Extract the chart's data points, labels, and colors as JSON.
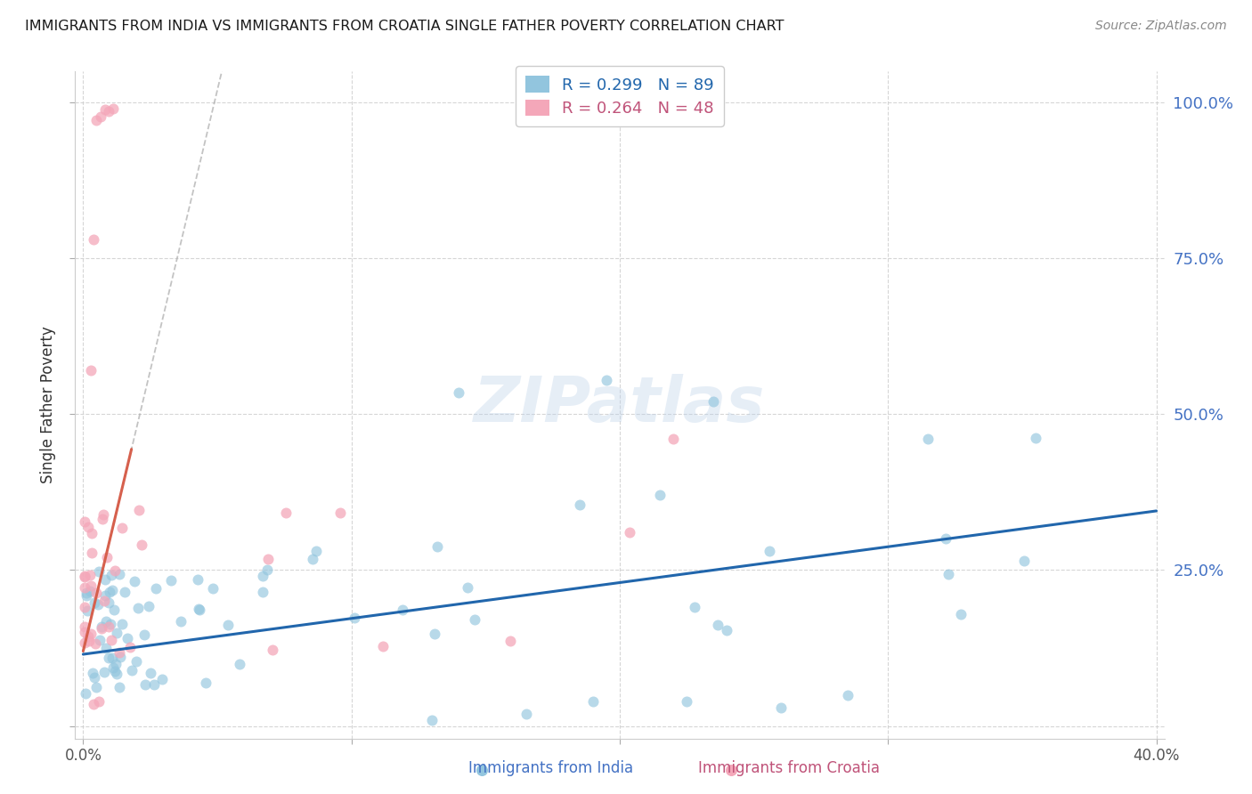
{
  "title": "IMMIGRANTS FROM INDIA VS IMMIGRANTS FROM CROATIA SINGLE FATHER POVERTY CORRELATION CHART",
  "source": "Source: ZipAtlas.com",
  "ylabel": "Single Father Poverty",
  "legend_india": {
    "R": 0.299,
    "N": 89,
    "color": "#92c5de"
  },
  "legend_croatia": {
    "R": 0.264,
    "N": 48,
    "color": "#f4a7b9"
  },
  "india_color": "#92c5de",
  "croatia_color": "#f4a7b9",
  "india_trend_color": "#2166ac",
  "croatia_trend_color": "#d6604d",
  "watermark": "ZIPatlas",
  "xlim": [
    0.0,
    0.4
  ],
  "ylim": [
    0.0,
    1.0
  ],
  "background": "#ffffff",
  "grid_color": "#cccccc",
  "right_axis_color": "#4472c4",
  "bottom_label_color_india": "#4472c4",
  "bottom_label_color_croatia": "#c0547a"
}
